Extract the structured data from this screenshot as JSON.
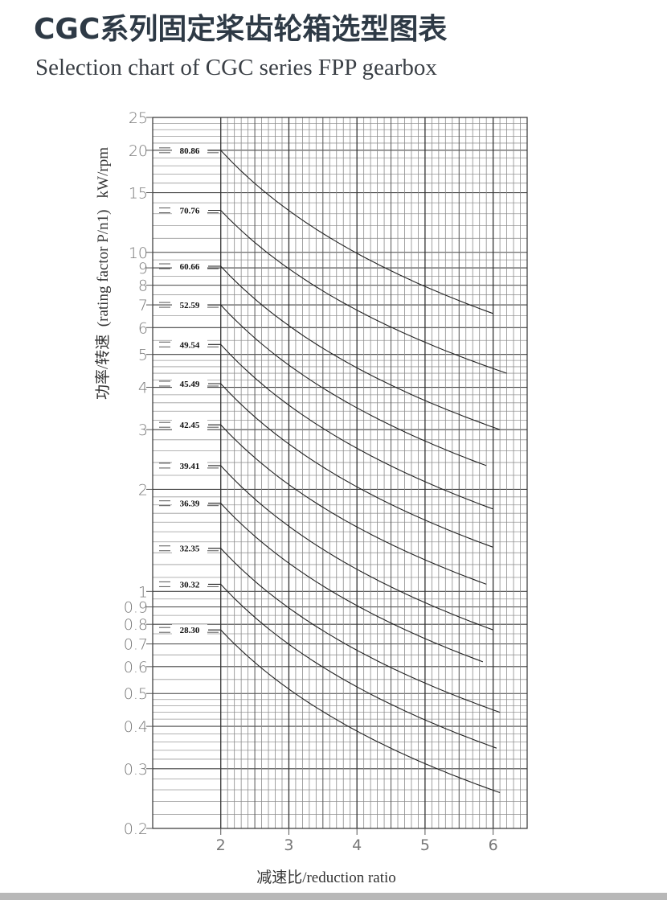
{
  "header": {
    "title": "CGC系列固定桨齿轮箱选型图表",
    "subtitle": "Selection chart of CGC series FPP gearbox"
  },
  "chart_data": {
    "type": "line",
    "title": "CGC系列固定桨齿轮箱选型图表",
    "subtitle": "Selection chart of CGC series FPP gearbox",
    "xlabel": "减速比/reduction ratio",
    "ylabel": "功率/转速  (rating factor P/n1)   kW/rpm",
    "xscale": "linear",
    "yscale": "log",
    "xlim": [
      1,
      6.5
    ],
    "ylim": [
      0.2,
      25
    ],
    "grid": true,
    "x_ticks": [
      "2",
      "3",
      "4",
      "5",
      "6"
    ],
    "y_ticks": [
      "25",
      "20",
      "15",
      "10",
      "9",
      "8",
      "7",
      "6",
      "5",
      "4",
      "3",
      "2",
      "1",
      "0.9",
      "0.8",
      "0.7",
      "0.6",
      "0.5",
      "0.4",
      "0.3",
      "0.2"
    ],
    "series_labels_position": "left",
    "series": [
      {
        "name": "80.86",
        "start": [
          2,
          20.0
        ],
        "end": [
          6.0,
          6.6
        ]
      },
      {
        "name": "70.76",
        "start": [
          2,
          13.3
        ],
        "end": [
          6.2,
          4.4
        ]
      },
      {
        "name": "60.66",
        "start": [
          2,
          9.1
        ],
        "end": [
          6.1,
          3.0
        ]
      },
      {
        "name": "52.59",
        "start": [
          2,
          7.0
        ],
        "end": [
          5.9,
          2.35
        ]
      },
      {
        "name": "49.54",
        "start": [
          2,
          5.35
        ],
        "end": [
          6.0,
          1.75
        ]
      },
      {
        "name": "45.49",
        "start": [
          2,
          4.1
        ],
        "end": [
          6.0,
          1.35
        ]
      },
      {
        "name": "42.45",
        "start": [
          2,
          3.1
        ],
        "end": [
          5.9,
          1.05
        ]
      },
      {
        "name": "39.41",
        "start": [
          2,
          2.35
        ],
        "end": [
          6.0,
          0.77
        ]
      },
      {
        "name": "36.39",
        "start": [
          2,
          1.82
        ],
        "end": [
          5.85,
          0.62
        ]
      },
      {
        "name": "32.35",
        "start": [
          2,
          1.34
        ],
        "end": [
          6.1,
          0.44
        ]
      },
      {
        "name": "30.32",
        "start": [
          2,
          1.05
        ],
        "end": [
          6.05,
          0.345
        ]
      },
      {
        "name": "28.30",
        "start": [
          2,
          0.77
        ],
        "end": [
          6.1,
          0.255
        ]
      }
    ]
  }
}
